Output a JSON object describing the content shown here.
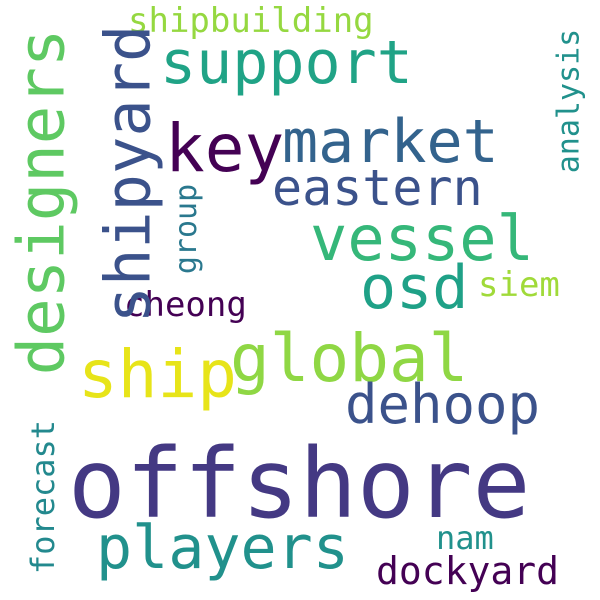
{
  "words": {
    "offshore": {
      "text": "offshore",
      "color": "#443983"
    },
    "players": {
      "text": "players",
      "color": "#21918c"
    },
    "global": {
      "text": "global",
      "color": "#8fd744"
    },
    "ship": {
      "text": "ship",
      "color": "#e7e419"
    },
    "dehoop": {
      "text": "dehoop",
      "color": "#3b528b"
    },
    "support": {
      "text": "support",
      "color": "#20a386"
    },
    "key": {
      "text": "key",
      "color": "#440154"
    },
    "market": {
      "text": "market",
      "color": "#33638d"
    },
    "eastern": {
      "text": "eastern",
      "color": "#3b528b"
    },
    "vessel": {
      "text": "vessel",
      "color": "#35b779"
    },
    "osd": {
      "text": "osd",
      "color": "#1fa187"
    },
    "cheong": {
      "text": "cheong",
      "color": "#440154"
    },
    "siem": {
      "text": "siem",
      "color": "#a0da39"
    },
    "dockyard": {
      "text": "dockyard",
      "color": "#440154"
    },
    "nam": {
      "text": "nam",
      "color": "#21918c"
    },
    "shipbuilding": {
      "text": "shipbuilding",
      "color": "#95d840"
    },
    "designers": {
      "text": "designers",
      "color": "#5ec962"
    },
    "shipyard": {
      "text": "shipyard",
      "color": "#3b528b"
    },
    "group": {
      "text": "group",
      "color": "#2a788e"
    },
    "analysis": {
      "text": "analysis",
      "color": "#21918c"
    },
    "forecast": {
      "text": "forecast",
      "color": "#23898e"
    }
  }
}
